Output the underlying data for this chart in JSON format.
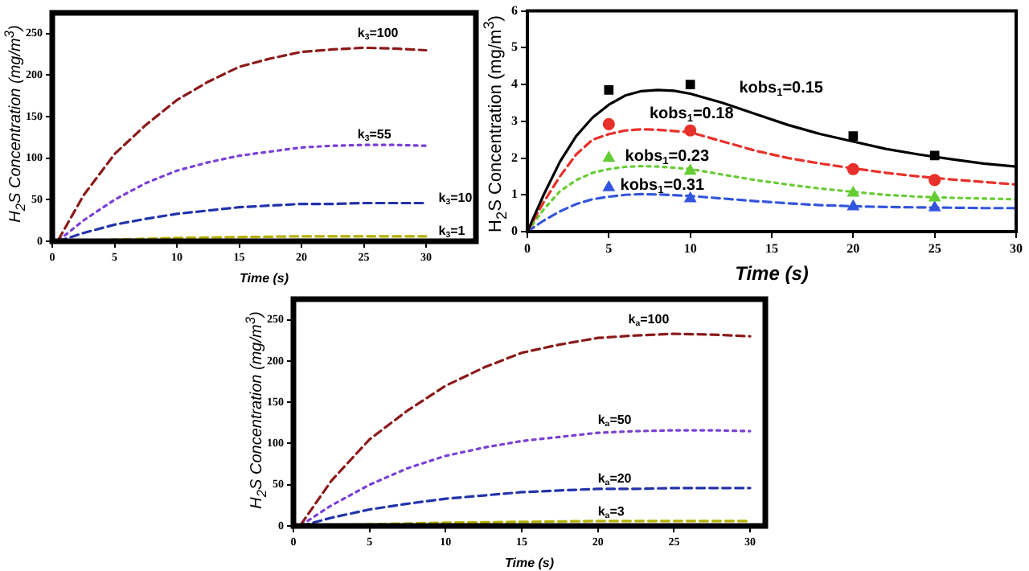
{
  "chart_data": [
    {
      "type": "line",
      "xlabel": "Time (s)",
      "ylabel": "H$_{2}$S Concentration (mg/m$^{3}$)",
      "xlim": [
        0,
        34
      ],
      "xticks": [
        0,
        5,
        10,
        15,
        20,
        25,
        30
      ],
      "ylim": [
        0,
        275
      ],
      "yticks": [
        0,
        50,
        100,
        150,
        200,
        250
      ],
      "grid": false,
      "legend": false,
      "marker": "none",
      "series": [
        {
          "name": "k$_{3}$=100",
          "color": "#8b1a1a",
          "line_style": "dashed",
          "x": [
            0.5,
            2.5,
            5,
            7.5,
            10,
            12.5,
            15,
            17.5,
            20,
            22.5,
            25,
            27.5,
            30
          ],
          "values": [
            2,
            55,
            105,
            140,
            170,
            192,
            210,
            220,
            228,
            231,
            233,
            232,
            230
          ]
        },
        {
          "name": "k$_{3}$=55",
          "color": "#7a3fd6",
          "line_style": "dotted",
          "x": [
            0.5,
            2.5,
            5,
            7.5,
            10,
            12.5,
            15,
            17.5,
            20,
            22.5,
            25,
            27.5,
            30
          ],
          "values": [
            1,
            25,
            50,
            70,
            85,
            95,
            103,
            108,
            113,
            115,
            116,
            116,
            115
          ]
        },
        {
          "name": "k$_{3}$=10",
          "color": "#2233aa",
          "line_style": "dashed",
          "x": [
            0.5,
            2.5,
            5,
            7.5,
            10,
            12.5,
            15,
            17.5,
            20,
            22.5,
            25,
            27.5,
            30
          ],
          "values": [
            0,
            10,
            20,
            27,
            33,
            37,
            41,
            43,
            45,
            45,
            46,
            46,
            46
          ]
        },
        {
          "name": "k$_{3}$=1",
          "color": "#b5b000",
          "line_style": "dashed",
          "x": [
            0.5,
            5,
            10,
            15,
            20,
            25,
            30
          ],
          "values": [
            0,
            2,
            4,
            5,
            6,
            6,
            6
          ]
        }
      ]
    },
    {
      "type": "line",
      "xlabel": "Time (s)",
      "ylabel": "H$_{2}$S Concentration (mg/m$^{3}$)",
      "xlim": [
        0,
        30
      ],
      "xticks": [
        0,
        5,
        10,
        15,
        20,
        25,
        30
      ],
      "ylim": [
        0,
        6
      ],
      "yticks": [
        0,
        1,
        2,
        3,
        4,
        5,
        6
      ],
      "grid": false,
      "legend": false,
      "series": [
        {
          "name": "kobs$_{1}$=0.15",
          "color": "#000000",
          "line_style": "solid",
          "marker": "none",
          "x": [
            0,
            1,
            2,
            3,
            4,
            5,
            6,
            7,
            8,
            9,
            10,
            12,
            14,
            16,
            18,
            20,
            22,
            24,
            26,
            28,
            30
          ],
          "values": [
            0,
            1.0,
            1.9,
            2.6,
            3.1,
            3.45,
            3.7,
            3.82,
            3.85,
            3.83,
            3.75,
            3.5,
            3.2,
            2.9,
            2.65,
            2.45,
            2.25,
            2.1,
            1.97,
            1.85,
            1.77
          ]
        },
        {
          "name": "kobs$_{1}$=0.18",
          "color": "#e8302a",
          "line_style": "dashed",
          "marker": "none",
          "x": [
            0,
            1,
            2,
            3,
            4,
            5,
            6,
            7,
            8,
            10,
            12,
            14,
            16,
            18,
            20,
            22,
            24,
            26,
            28,
            30
          ],
          "values": [
            0,
            0.8,
            1.5,
            2.1,
            2.5,
            2.65,
            2.75,
            2.78,
            2.77,
            2.7,
            2.45,
            2.2,
            2.0,
            1.85,
            1.72,
            1.6,
            1.5,
            1.42,
            1.35,
            1.28
          ]
        },
        {
          "name": "kobs$_{1}$=0.23",
          "color": "#66cc33",
          "line_style": "dotted",
          "marker": "none",
          "x": [
            0,
            1,
            2,
            3,
            4,
            5,
            6,
            7,
            8,
            10,
            12,
            14,
            16,
            18,
            20,
            22,
            24,
            26,
            28,
            30
          ],
          "values": [
            0,
            0.6,
            1.1,
            1.4,
            1.6,
            1.7,
            1.76,
            1.78,
            1.77,
            1.7,
            1.55,
            1.4,
            1.28,
            1.17,
            1.08,
            1.0,
            0.95,
            0.92,
            0.9,
            0.88
          ]
        },
        {
          "name": "kobs$_{1}$=0.31",
          "color": "#3355dd",
          "line_style": "dashed",
          "marker": "none",
          "x": [
            0,
            1,
            2,
            3,
            4,
            5,
            6,
            7,
            8,
            10,
            12,
            14,
            16,
            18,
            20,
            22,
            24,
            26,
            28,
            30
          ],
          "values": [
            0,
            0.3,
            0.55,
            0.75,
            0.88,
            0.95,
            1.0,
            1.02,
            1.01,
            0.97,
            0.9,
            0.83,
            0.77,
            0.72,
            0.69,
            0.67,
            0.66,
            0.65,
            0.64,
            0.64
          ]
        },
        {
          "type": "scatter",
          "color": "#000000",
          "marker": "square",
          "x": [
            5,
            10,
            20,
            25
          ],
          "values": [
            3.85,
            4.0,
            2.6,
            2.07
          ]
        },
        {
          "type": "scatter",
          "color": "#e8302a",
          "marker": "circle",
          "x": [
            5,
            10,
            20,
            25
          ],
          "values": [
            2.92,
            2.75,
            1.7,
            1.4
          ]
        },
        {
          "type": "scatter",
          "color": "#66cc33",
          "marker": "triangle",
          "x": [
            5,
            10,
            20,
            25
          ],
          "values": [
            2.0,
            1.65,
            1.05,
            0.92
          ]
        },
        {
          "type": "scatter",
          "color": "#3355dd",
          "marker": "triangle",
          "x": [
            5,
            10,
            20,
            25
          ],
          "values": [
            1.2,
            0.9,
            0.68,
            0.65
          ]
        }
      ]
    },
    {
      "type": "line",
      "xlabel": "Time (s)",
      "ylabel": "H$_{2}$S Concentration (mg/m$^{3}$)",
      "xlim": [
        0,
        31
      ],
      "xticks": [
        0,
        5,
        10,
        15,
        20,
        25,
        30
      ],
      "ylim": [
        0,
        275
      ],
      "yticks": [
        0,
        50,
        100,
        150,
        200,
        250
      ],
      "grid": false,
      "legend": false,
      "marker": "none",
      "series": [
        {
          "name": "k$_{a}$=100",
          "color": "#8b1a1a",
          "line_style": "dashed",
          "x": [
            0.5,
            2.5,
            5,
            7.5,
            10,
            12.5,
            15,
            17.5,
            20,
            22.5,
            25,
            27.5,
            30
          ],
          "values": [
            2,
            55,
            105,
            140,
            170,
            192,
            210,
            220,
            228,
            231,
            233,
            232,
            230
          ]
        },
        {
          "name": "k$_{a}$=50",
          "color": "#7a3fd6",
          "line_style": "dotted",
          "x": [
            0.5,
            2.5,
            5,
            7.5,
            10,
            12.5,
            15,
            17.5,
            20,
            22.5,
            25,
            27.5,
            30
          ],
          "values": [
            1,
            25,
            50,
            70,
            85,
            95,
            103,
            108,
            113,
            115,
            116,
            116,
            115
          ]
        },
        {
          "name": "k$_{a}$=20",
          "color": "#2233aa",
          "line_style": "dashed",
          "x": [
            0.5,
            2.5,
            5,
            7.5,
            10,
            12.5,
            15,
            17.5,
            20,
            22.5,
            25,
            27.5,
            30
          ],
          "values": [
            0,
            10,
            20,
            27,
            33,
            37,
            41,
            43,
            45,
            45,
            46,
            46,
            46
          ]
        },
        {
          "name": "k$_{a}$=3",
          "color": "#b5b000",
          "line_style": "dashed",
          "x": [
            0.5,
            5,
            10,
            15,
            20,
            25,
            30
          ],
          "values": [
            0,
            2,
            4,
            5,
            6,
            6,
            6
          ]
        }
      ]
    }
  ]
}
